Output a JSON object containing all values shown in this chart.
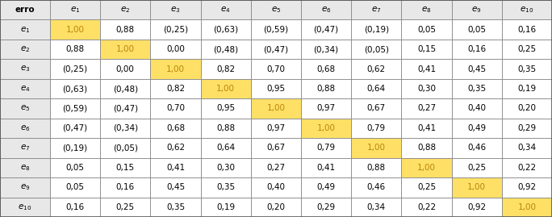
{
  "row_labels": [
    "e_1",
    "e_2",
    "e_3",
    "e_4",
    "e_5",
    "e_6",
    "e_7",
    "e_8",
    "e_9",
    "e_10"
  ],
  "col_labels": [
    "e_1",
    "e_2",
    "e_3",
    "e_4",
    "e_5",
    "e_6",
    "e_7",
    "e_8",
    "e_9",
    "e_10"
  ],
  "matrix": [
    [
      "1,00",
      "0,88",
      "(0,25)",
      "(0,63)",
      "(0,59)",
      "(0,47)",
      "(0,19)",
      "0,05",
      "0,05",
      "0,16"
    ],
    [
      "0,88",
      "1,00",
      "0,00",
      "(0,48)",
      "(0,47)",
      "(0,34)",
      "(0,05)",
      "0,15",
      "0,16",
      "0,25"
    ],
    [
      "(0,25)",
      "0,00",
      "1,00",
      "0,82",
      "0,70",
      "0,68",
      "0,62",
      "0,41",
      "0,45",
      "0,35"
    ],
    [
      "(0,63)",
      "(0,48)",
      "0,82",
      "1,00",
      "0,95",
      "0,88",
      "0,64",
      "0,30",
      "0,35",
      "0,19"
    ],
    [
      "(0,59)",
      "(0,47)",
      "0,70",
      "0,95",
      "1,00",
      "0,97",
      "0,67",
      "0,27",
      "0,40",
      "0,20"
    ],
    [
      "(0,47)",
      "(0,34)",
      "0,68",
      "0,88",
      "0,97",
      "1,00",
      "0,79",
      "0,41",
      "0,49",
      "0,29"
    ],
    [
      "(0,19)",
      "(0,05)",
      "0,62",
      "0,64",
      "0,67",
      "0,79",
      "1,00",
      "0,88",
      "0,46",
      "0,34"
    ],
    [
      "0,05",
      "0,15",
      "0,41",
      "0,30",
      "0,27",
      "0,41",
      "0,88",
      "1,00",
      "0,25",
      "0,22"
    ],
    [
      "0,05",
      "0,16",
      "0,45",
      "0,35",
      "0,40",
      "0,49",
      "0,46",
      "0,25",
      "1,00",
      "0,92"
    ],
    [
      "0,16",
      "0,25",
      "0,35",
      "0,19",
      "0,20",
      "0,29",
      "0,34",
      "0,22",
      "0,92",
      "1,00"
    ]
  ],
  "diagonal_color": "#FFE066",
  "header_bg": "#E8E8E8",
  "cell_bg": "#FFFFFF",
  "border_color": "#888888",
  "text_color_normal": "#000000",
  "text_color_diagonal": "#B8860B",
  "header_row_label": "erro",
  "fig_width": 6.84,
  "fig_height": 2.69,
  "dpi": 100
}
